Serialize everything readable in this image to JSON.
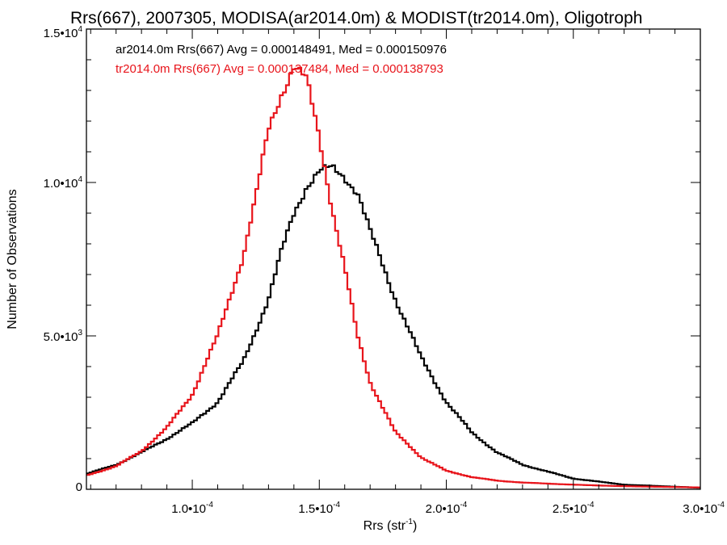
{
  "chart_data": {
    "type": "line",
    "title": "Rrs(667), 2007305, MODISA(ar2014.0m) & MODIST(tr2014.0m), Oligotroph",
    "xlabel": "Rrs (str",
    "xlabel_sup": "-1",
    "xlabel_tail": ")",
    "ylabel": "Number of Observations",
    "xlim": [
      5.833e-05,
      0.0003
    ],
    "ylim": [
      0,
      15000
    ],
    "x_ticks": [
      {
        "value": 0.0001,
        "mant": "1.0•10",
        "exp": "-4"
      },
      {
        "value": 0.00015,
        "mant": "1.5•10",
        "exp": "-4"
      },
      {
        "value": 0.0002,
        "mant": "2.0•10",
        "exp": "-4"
      },
      {
        "value": 0.00025,
        "mant": "2.5•10",
        "exp": "-4"
      },
      {
        "value": 0.0003,
        "mant": "3.0•10",
        "exp": "-4"
      }
    ],
    "y_ticks": [
      {
        "value": 0,
        "mant": "0",
        "exp": ""
      },
      {
        "value": 5000,
        "mant": "5.0•10",
        "exp": "3"
      },
      {
        "value": 10000,
        "mant": "1.0•10",
        "exp": "4"
      },
      {
        "value": 15000,
        "mant": "1.5•10",
        "exp": "4"
      }
    ],
    "grid": false,
    "series": [
      {
        "color": "#000000",
        "annotation": "ar2014.0m Rrs(667) Avg = 0.000148491, Med = 0.000150976",
        "x": [
          5.83e-05,
          7e-05,
          8e-05,
          9e-05,
          0.0001,
          0.00011,
          0.00012,
          0.00013,
          0.000135,
          0.00014,
          0.000145,
          0.00015,
          0.000155,
          0.00016,
          0.000165,
          0.00017,
          0.00018,
          0.00019,
          0.0002,
          0.00021,
          0.00022,
          0.00023,
          0.00025,
          0.00027,
          0.0003
        ],
        "y": [
          500,
          800,
          1200,
          1650,
          2150,
          2850,
          4150,
          6200,
          7700,
          9000,
          9900,
          10350,
          10450,
          10200,
          9700,
          8400,
          6200,
          4300,
          2850,
          1850,
          1200,
          800,
          350,
          150,
          50
        ]
      },
      {
        "color": "#e8141b",
        "annotation": "tr2014.0m Rrs(667) Avg = 0.000137484, Med = 0.000138793",
        "x": [
          5.83e-05,
          7e-05,
          8e-05,
          9e-05,
          0.0001,
          0.00011,
          0.00012,
          0.000125,
          0.00013,
          0.000135,
          0.00014,
          0.000145,
          0.00015,
          0.000155,
          0.00016,
          0.000165,
          0.00017,
          0.00018,
          0.00019,
          0.0002,
          0.00021,
          0.00022,
          0.00023,
          0.00025,
          0.00027,
          0.0003
        ],
        "y": [
          450,
          750,
          1250,
          2000,
          3100,
          5000,
          7600,
          9500,
          11700,
          12900,
          13800,
          13300,
          11500,
          9200,
          7200,
          5000,
          3500,
          1850,
          1050,
          600,
          400,
          280,
          220,
          150,
          100,
          60
        ]
      }
    ]
  }
}
